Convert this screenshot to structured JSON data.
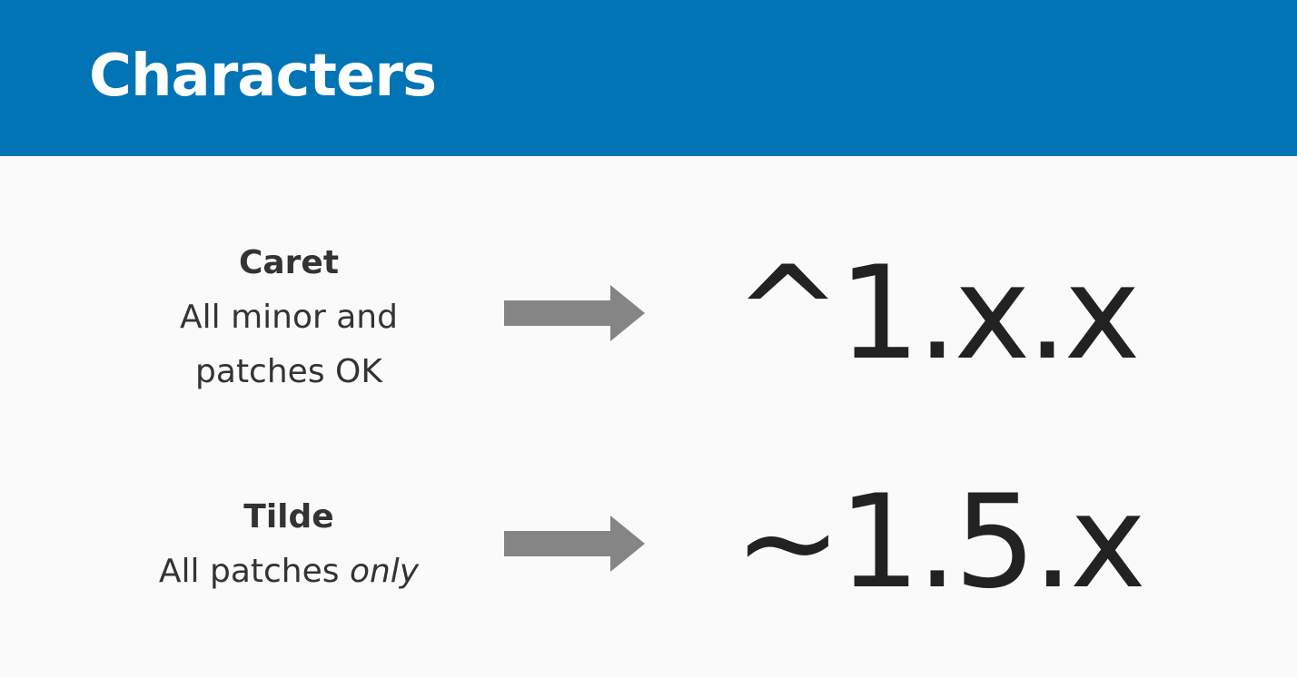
{
  "slide": {
    "title": "Characters",
    "header_color": "#0174b5"
  },
  "rows": [
    {
      "name": "Caret",
      "description_line1": "All minor and",
      "description_line2": "patches OK",
      "arrow_icon": "right-arrow-icon",
      "version": "^1.x.x"
    },
    {
      "name": "Tilde",
      "description_prefix": "All patches ",
      "description_emphasis": "only",
      "arrow_icon": "right-arrow-icon",
      "version": "~1.5.x"
    }
  ],
  "colors": {
    "arrow": "#858585",
    "text": "#333333",
    "background": "#fafafa"
  }
}
